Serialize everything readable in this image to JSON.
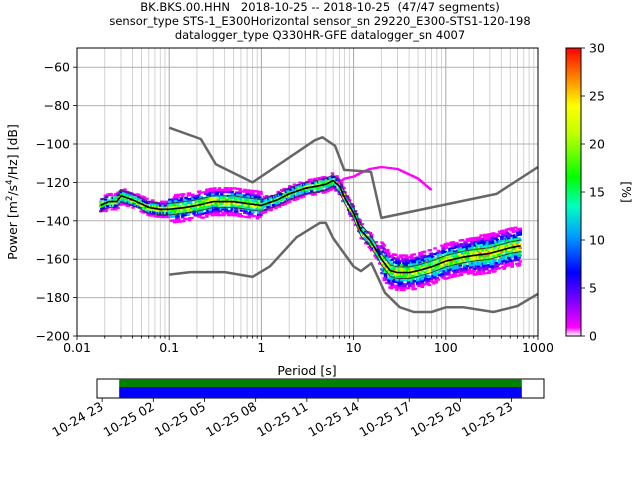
{
  "title": {
    "line1": "BK.BKS.00.HHN   2018-10-25 -- 2018-10-25  (47/47 segments)",
    "line2": "sensor_type STS-1_E300Horizontal sensor_sn 29220_E300-STS1-120-198",
    "line3": "datalogger_type Q330HR-GFE datalogger_sn 4007"
  },
  "colors": {
    "nlnm_nhnm": "#666666",
    "mean_curve": "#000000",
    "timeline_green": "#008000",
    "timeline_blue": "#0000ff"
  },
  "chart_data": {
    "type": "heatmap",
    "xlabel": "Period [s]",
    "ylabel_parts": [
      "Power [m",
      "2",
      "/s",
      "4",
      "/Hz] [dB]"
    ],
    "xscale": "log",
    "xlim": [
      0.01,
      1000
    ],
    "ylim": [
      -200,
      -50
    ],
    "grid": true,
    "x_ticks": [
      0.01,
      0.1,
      1,
      10,
      100,
      1000
    ],
    "x_tick_labels": [
      "0.01",
      "0.1",
      "1",
      "10",
      "100",
      "1000"
    ],
    "y_ticks": [
      -200,
      -180,
      -160,
      -140,
      -120,
      -100,
      -80,
      -60
    ],
    "y_tick_labels": [
      "−200",
      "−180",
      "−160",
      "−140",
      "−120",
      "−100",
      "−80",
      "−60"
    ],
    "colorbar": {
      "label": "[%]",
      "range": [
        0,
        30
      ],
      "ticks": [
        0,
        5,
        10,
        15,
        20,
        25,
        30
      ],
      "tick_labels": [
        "0",
        "5",
        "10",
        "15",
        "20",
        "25",
        "30"
      ],
      "colormap": [
        "#ffffff",
        "#ff00ff",
        "#8000ff",
        "#0000ff",
        "#00c0ff",
        "#00ffb0",
        "#00ff00",
        "#c0ff00",
        "#ffff00",
        "#ff8000",
        "#ff0000"
      ]
    },
    "nhnm": {
      "x": [
        0.1,
        0.22,
        0.32,
        0.8,
        3.8,
        4.6,
        6.3,
        7.9,
        15.4,
        20,
        354.8,
        1000
      ],
      "y": [
        -91.5,
        -97.4,
        -110.5,
        -120,
        -98,
        -96.5,
        -101,
        -113.5,
        -114.5,
        -138.5,
        -126,
        -112
      ]
    },
    "nlnm": {
      "x": [
        0.1,
        0.17,
        0.4,
        0.8,
        1.24,
        2.4,
        4.3,
        5,
        6,
        10,
        12,
        15.6,
        21.9,
        31.6,
        45,
        70,
        101,
        154,
        328,
        600,
        1000
      ],
      "y": [
        -168,
        -166.7,
        -166.7,
        -169.2,
        -163.7,
        -148.6,
        -141.1,
        -141.1,
        -149,
        -163.8,
        -166.2,
        -162.1,
        -177.5,
        -185,
        -187.5,
        -187.5,
        -185,
        -185,
        -187.5,
        -184.4,
        -178
      ]
    },
    "mean_curve": {
      "x": [
        0.018,
        0.022,
        0.027,
        0.03,
        0.04,
        0.06,
        0.08,
        0.1,
        0.15,
        0.2,
        0.3,
        0.5,
        0.7,
        1,
        1.5,
        2,
        3,
        4,
        5,
        6,
        7,
        8,
        10,
        12,
        15,
        18,
        20,
        25,
        30,
        40,
        50,
        70,
        100,
        150,
        200,
        300,
        500,
        650
      ],
      "y": [
        -132,
        -130,
        -130,
        -127,
        -129,
        -133,
        -134,
        -134,
        -133,
        -132,
        -130,
        -130,
        -131,
        -132,
        -129,
        -126,
        -123,
        -122,
        -121,
        -119,
        -122,
        -128,
        -136,
        -145,
        -150,
        -156,
        -160,
        -166,
        -167,
        -167,
        -166,
        -164,
        -161,
        -159,
        -158,
        -157,
        -154,
        -153
      ]
    },
    "percentile_curves": [
      {
        "y_offset": -3
      },
      {
        "y_offset": 3
      }
    ],
    "outlier_curve": {
      "x": [
        7,
        8,
        10,
        12,
        15,
        20,
        30,
        50,
        70
      ],
      "y": [
        -120,
        -118,
        -117,
        -115,
        -113,
        -112,
        -113,
        -118,
        -124
      ]
    },
    "timeline": {
      "tick_labels": [
        "10-24 23",
        "10-25 02",
        "10-25 05",
        "10-25 08",
        "10-25 11",
        "10-25 14",
        "10-25 17",
        "10-25 20",
        "10-25 23"
      ],
      "range_hours": [
        -1.3,
        24.9
      ],
      "data_hours": [
        0,
        23.6
      ]
    }
  }
}
